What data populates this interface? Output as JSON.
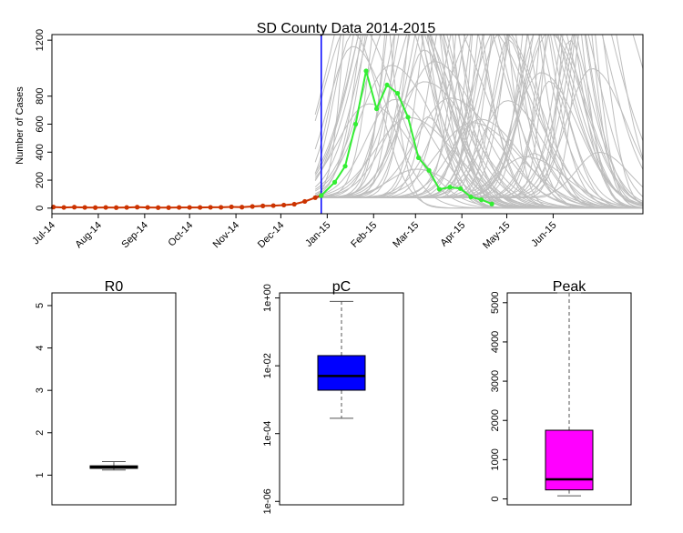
{
  "chart_data": [
    {
      "type": "line",
      "title": "SD County Data 2014-2015",
      "ylabel": "Number of Cases",
      "ylim": [
        0,
        1200
      ],
      "yticks": [
        0,
        200,
        400,
        600,
        800,
        1200
      ],
      "x_axis": {
        "start": "2014-07-01",
        "end": "2015-07-31",
        "tick_labels": [
          "Jul-14",
          "Aug-14",
          "Sep-14",
          "Oct-14",
          "Nov-14",
          "Dec-14",
          "Jan-15",
          "Feb-15",
          "Mar-15",
          "Apr-15",
          "May-15",
          "Jun-15"
        ],
        "tick_dates": [
          "2014-07-01",
          "2014-08-01",
          "2014-09-01",
          "2014-10-01",
          "2014-11-01",
          "2014-12-01",
          "2015-01-01",
          "2015-02-01",
          "2015-03-01",
          "2015-04-01",
          "2015-05-01",
          "2015-06-01"
        ]
      },
      "cutoff_line": {
        "date": "2014-12-28",
        "color": "#0000ff"
      },
      "series": [
        {
          "role": "observed",
          "color": "#cc3300",
          "points": [
            {
              "x": "2014-07-02",
              "y": 8
            },
            {
              "x": "2014-07-09",
              "y": 5
            },
            {
              "x": "2014-07-16",
              "y": 7
            },
            {
              "x": "2014-07-23",
              "y": 5
            },
            {
              "x": "2014-07-30",
              "y": 4
            },
            {
              "x": "2014-08-06",
              "y": 5
            },
            {
              "x": "2014-08-13",
              "y": 4
            },
            {
              "x": "2014-08-20",
              "y": 5
            },
            {
              "x": "2014-08-27",
              "y": 7
            },
            {
              "x": "2014-09-03",
              "y": 5
            },
            {
              "x": "2014-09-10",
              "y": 4
            },
            {
              "x": "2014-09-17",
              "y": 4
            },
            {
              "x": "2014-09-24",
              "y": 5
            },
            {
              "x": "2014-10-01",
              "y": 5
            },
            {
              "x": "2014-10-08",
              "y": 5
            },
            {
              "x": "2014-10-15",
              "y": 6
            },
            {
              "x": "2014-10-22",
              "y": 6
            },
            {
              "x": "2014-10-29",
              "y": 9
            },
            {
              "x": "2014-11-05",
              "y": 7
            },
            {
              "x": "2014-11-12",
              "y": 12
            },
            {
              "x": "2014-11-19",
              "y": 16
            },
            {
              "x": "2014-11-26",
              "y": 18
            },
            {
              "x": "2014-12-03",
              "y": 22
            },
            {
              "x": "2014-12-10",
              "y": 28
            },
            {
              "x": "2014-12-17",
              "y": 48
            },
            {
              "x": "2014-12-24",
              "y": 75
            },
            {
              "x": "2014-12-28",
              "y": 90
            }
          ]
        },
        {
          "role": "forecast-actual",
          "color": "#33ee33",
          "points": [
            {
              "x": "2014-12-28",
              "y": 90
            },
            {
              "x": "2015-01-06",
              "y": 185
            },
            {
              "x": "2015-01-13",
              "y": 300
            },
            {
              "x": "2015-01-20",
              "y": 600
            },
            {
              "x": "2015-01-27",
              "y": 980
            },
            {
              "x": "2015-02-03",
              "y": 710
            },
            {
              "x": "2015-02-10",
              "y": 880
            },
            {
              "x": "2015-02-17",
              "y": 820
            },
            {
              "x": "2015-02-24",
              "y": 650
            },
            {
              "x": "2015-03-03",
              "y": 360
            },
            {
              "x": "2015-03-10",
              "y": 270
            },
            {
              "x": "2015-03-17",
              "y": 135
            },
            {
              "x": "2015-03-24",
              "y": 150
            },
            {
              "x": "2015-03-31",
              "y": 140
            },
            {
              "x": "2015-04-07",
              "y": 80
            },
            {
              "x": "2015-04-14",
              "y": 60
            },
            {
              "x": "2015-04-21",
              "y": 30
            }
          ]
        }
      ],
      "simulations": {
        "color": "#bebebe",
        "count": 80,
        "start": "2014-12-24",
        "start_y": 75
      }
    },
    {
      "type": "box",
      "title": "R0",
      "ylim": [
        0.3,
        5.3
      ],
      "yticks": [
        1,
        2,
        3,
        4,
        5
      ],
      "stats": {
        "whisker_low": 1.12,
        "q1": 1.16,
        "median": 1.19,
        "q3": 1.22,
        "whisker_high": 1.32
      },
      "fill": "#000000"
    },
    {
      "type": "box",
      "title": "pC",
      "scale": "log10",
      "ylim_log10": [
        -6.1,
        0.15
      ],
      "yticks_log10": [
        0,
        -2,
        -4,
        -6
      ],
      "ytick_labels": [
        "1e+00",
        "1e-02",
        "1e-04",
        "1e-06"
      ],
      "stats_log10": {
        "whisker_low": -3.55,
        "q1": -2.72,
        "median": -2.3,
        "q3": -1.7,
        "whisker_high": -0.1
      },
      "fill": "#0000ff"
    },
    {
      "type": "box",
      "title": "Peak",
      "ylim": [
        -150,
        5250
      ],
      "yticks": [
        0,
        1000,
        2000,
        3000,
        4000,
        5000
      ],
      "stats": {
        "whisker_low": 80,
        "q1": 230,
        "median": 500,
        "q3": 1750,
        "whisker_high": 5250
      },
      "fill": "#ff00ff"
    }
  ]
}
